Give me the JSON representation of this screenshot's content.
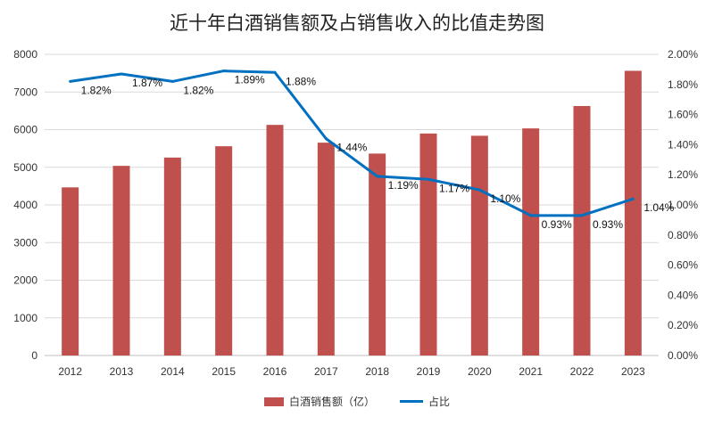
{
  "chart_data": {
    "type": "bar",
    "title": "近十年白酒销售额及占销售收入的比值走势图",
    "categories": [
      "2012",
      "2013",
      "2014",
      "2015",
      "2016",
      "2017",
      "2018",
      "2019",
      "2020",
      "2021",
      "2022",
      "2023"
    ],
    "series": [
      {
        "name": "白酒销售额（亿）",
        "type": "bar",
        "axis": "left",
        "color": "#C0504D",
        "values": [
          4466,
          5038,
          5258,
          5559,
          6126,
          5654,
          5364,
          5897,
          5837,
          6033,
          6627,
          7563
        ]
      },
      {
        "name": "占比",
        "type": "line",
        "axis": "right",
        "color": "#0070C0",
        "values": [
          1.82,
          1.87,
          1.82,
          1.89,
          1.88,
          1.44,
          1.19,
          1.17,
          1.1,
          0.93,
          0.93,
          1.04
        ],
        "labels": [
          "1.82%",
          "1.87%",
          "1.82%",
          "1.89%",
          "1.88%",
          "1.44%",
          "1.19%",
          "1.17%",
          "1.10%",
          "0.93%",
          "0.93%",
          "1.04%"
        ]
      }
    ],
    "y_left": {
      "ylim": [
        0,
        8000
      ],
      "ticks": [
        "0",
        "1000",
        "2000",
        "3000",
        "4000",
        "5000",
        "6000",
        "7000",
        "8000"
      ]
    },
    "y_right": {
      "ylim": [
        0,
        2.0
      ],
      "ticks": [
        "0.00%",
        "0.20%",
        "0.40%",
        "0.60%",
        "0.80%",
        "1.00%",
        "1.20%",
        "1.40%",
        "1.60%",
        "1.80%",
        "2.00%"
      ]
    },
    "grid": true,
    "legend_position": "bottom"
  }
}
